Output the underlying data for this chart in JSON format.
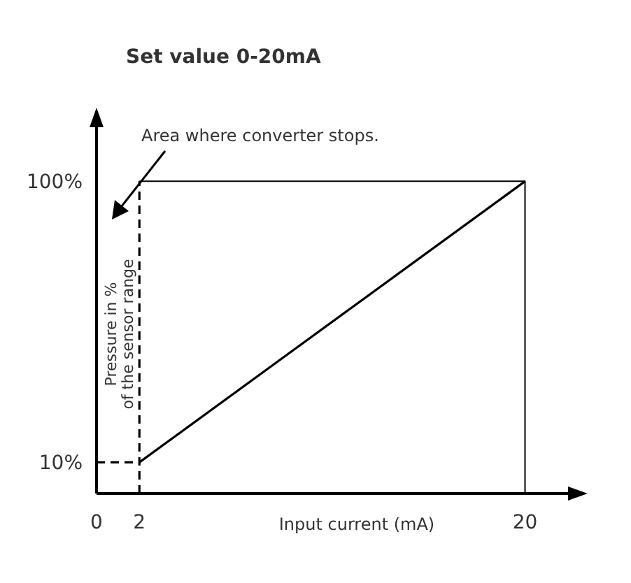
{
  "chart_data": {
    "type": "line",
    "title": "Set value 0-20mA",
    "xlabel": "Input current (mA)",
    "ylabel": "Pressure in %\nof the sensor range",
    "annotations": [
      "Area where converter stops."
    ],
    "xlim": [
      0,
      22.4
    ],
    "ylim": [
      0,
      120
    ],
    "xticks": [
      0,
      2,
      20
    ],
    "yticks": [
      {
        "value": 10,
        "label": "10%"
      },
      {
        "value": 100,
        "label": "100%"
      }
    ],
    "series": [
      {
        "x": [
          2,
          20
        ],
        "values": [
          10,
          100
        ],
        "color": "#000000",
        "line_style": "solid"
      },
      {
        "x": [
          2,
          2
        ],
        "values": [
          0,
          100
        ],
        "color": "#000000",
        "line_style": "dashed"
      },
      {
        "x": [
          0,
          2
        ],
        "values": [
          10,
          10
        ],
        "color": "#000000",
        "line_style": "dashed"
      },
      {
        "x": [
          2,
          20,
          20
        ],
        "values": [
          100,
          100,
          0
        ],
        "color": "#000000",
        "line_style": "solid"
      }
    ],
    "grid": false
  }
}
